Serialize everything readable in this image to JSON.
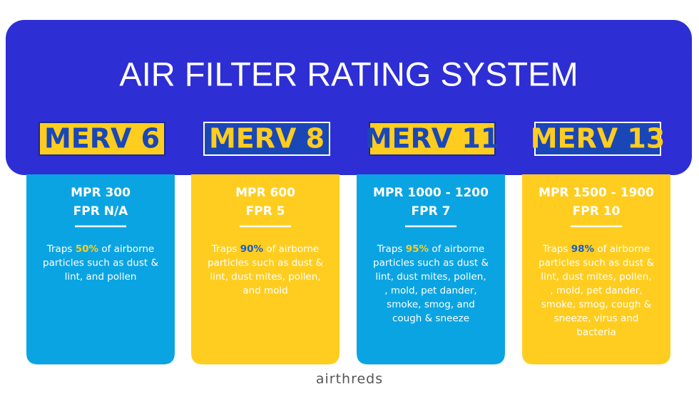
{
  "header": {
    "title": "AIR FILTER RATING SYSTEM"
  },
  "cards": [
    {
      "merv": "MERV 6",
      "mpr": "MPR 300",
      "fpr": "FPR N/A",
      "lead": "Traps",
      "percent": "50%",
      "lines": [
        "of airborne",
        "particles such as dust &",
        "lint, and pollen"
      ]
    },
    {
      "merv": "MERV 8",
      "mpr": "MPR 600",
      "fpr": "FPR 5",
      "lead": "Traps",
      "percent": "90%",
      "lines": [
        "of airborne",
        "particles such as dust &",
        "lint, dust mites, pollen,",
        "and mold"
      ]
    },
    {
      "merv": "MERV 11",
      "mpr": "MPR 1000 - 1200",
      "fpr": "FPR 7",
      "lead": "Traps",
      "percent": "95%",
      "lines": [
        "of airborne",
        "particles such as dust &",
        "lint, dust mites, pollen,",
        ", mold, pet dander,",
        "smoke, smog, and",
        "cough & sneeze"
      ]
    },
    {
      "merv": "MERV 13",
      "mpr": "MPR 1500 - 1900",
      "fpr": "FPR 10",
      "lead": "Traps",
      "percent": "98%",
      "lines": [
        "of airborne",
        "particles such as dust &",
        "lint, dust mites, pollen,",
        ", mold, pet dander,",
        "smoke, smog, cough &",
        "sneeze, virus and",
        "bacteria"
      ]
    }
  ],
  "footer": {
    "logo": "airthreds"
  }
}
